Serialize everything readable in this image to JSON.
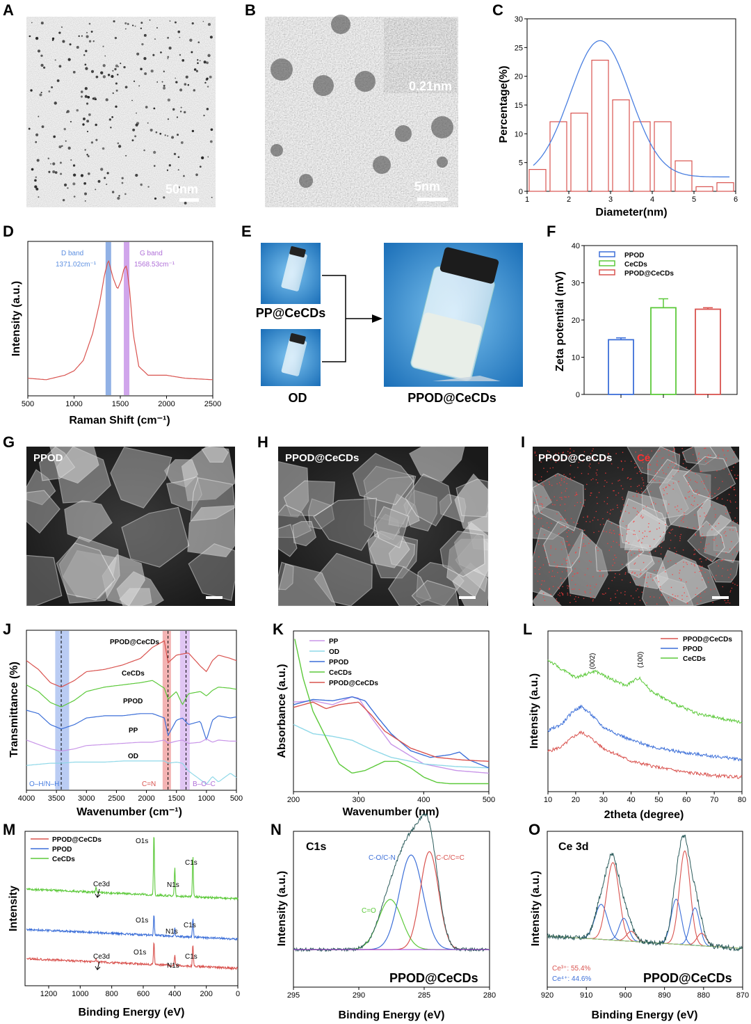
{
  "panel_letters": [
    "A",
    "B",
    "C",
    "D",
    "E",
    "F",
    "G",
    "H",
    "I",
    "J",
    "K",
    "L",
    "M",
    "N",
    "O"
  ],
  "colors": {
    "red": "#d9534f",
    "blue": "#3c6fd8",
    "green": "#5cc93a",
    "violet": "#c895e8",
    "cyan": "#8fd8e8",
    "curve_blue": "#4a7fe0"
  },
  "panelA": {
    "scale": "50nm"
  },
  "panelB": {
    "scale": "5nm",
    "lattice": "0.21nm"
  },
  "panelE": {
    "labels": [
      "PP@CeCDs",
      "OD",
      "PPOD@CeCDs"
    ]
  },
  "panelG": {
    "label": "PPOD"
  },
  "panelH": {
    "label": "PPOD@CeCDs"
  },
  "panelI": {
    "label": "PPOD@CeCDs",
    "element": "Ce"
  },
  "panelD_annot": {
    "d_band": "D band",
    "d_value": "1371.02cm⁻¹",
    "g_band": "G band",
    "g_value": "1568.53cm⁻¹"
  },
  "panelJ_annot": {
    "regions": [
      "O–H/N–H",
      "C=N",
      "B–O–C"
    ]
  },
  "panelL_annot": {
    "peaks": [
      "(002)",
      "(100)"
    ]
  },
  "panelM_annot": {
    "labels": [
      "O1s",
      "C1s",
      "N1s",
      "Ce3d",
      "O1s",
      "N1s",
      "C1s",
      "O1s",
      "N1s",
      "C1s",
      "Ce3d"
    ]
  },
  "panelN_annot": {
    "title": "C1s",
    "sample": "PPOD@CeCDs",
    "peaks": [
      "C-O/C-N",
      "C-C/C=C",
      "C=O"
    ]
  },
  "panelO_annot": {
    "title": "Ce 3d",
    "sample": "PPOD@CeCDs",
    "ce3": "Ce³⁺: 55.4%",
    "ce4": "Ce⁴⁺: 44.6%"
  },
  "chart_data": [
    {
      "panel": "C",
      "type": "bar",
      "title": "",
      "xlabel": "Diameter(nm)",
      "ylabel": "Percentage(%)",
      "xlim": [
        1,
        6
      ],
      "ylim": [
        0,
        30
      ],
      "xticks": [
        "1",
        "2",
        "3",
        "4",
        "5",
        "6"
      ],
      "yticks": [
        "0",
        "5",
        "10",
        "15",
        "20",
        "25",
        "30"
      ],
      "bins": [
        [
          1.05,
          1.45
        ],
        [
          1.55,
          1.95
        ],
        [
          2.05,
          2.45
        ],
        [
          2.55,
          2.95
        ],
        [
          3.05,
          3.45
        ],
        [
          3.55,
          3.95
        ],
        [
          4.05,
          4.45
        ],
        [
          4.55,
          4.95
        ],
        [
          5.05,
          5.45
        ],
        [
          5.55,
          5.95
        ]
      ],
      "values": [
        3.8,
        12.1,
        13.6,
        22.8,
        15.9,
        12.1,
        12.1,
        5.3,
        0.8,
        1.5
      ],
      "fit": {
        "type": "gaussian",
        "baseline": 2.5,
        "amplitude": 23.7,
        "center": 2.75,
        "sigma": 0.72
      }
    },
    {
      "panel": "D",
      "type": "line",
      "xlabel": "Raman Shift (cm⁻¹)",
      "ylabel": "Intensity (a.u.)",
      "xlim": [
        500,
        2500
      ],
      "xticks": [
        "500",
        "1000",
        "1500",
        "2000",
        "2500"
      ],
      "x": [
        500,
        700,
        900,
        1000,
        1100,
        1200,
        1280,
        1330,
        1371,
        1420,
        1470,
        1510,
        1540,
        1568,
        1600,
        1640,
        1700,
        1800,
        2000,
        2200,
        2500
      ],
      "y": [
        0.1,
        0.09,
        0.12,
        0.15,
        0.22,
        0.4,
        0.62,
        0.8,
        0.9,
        0.78,
        0.7,
        0.76,
        0.84,
        0.86,
        0.7,
        0.4,
        0.18,
        0.12,
        0.12,
        0.1,
        0.09
      ]
    },
    {
      "panel": "F",
      "type": "bar",
      "xlabel": "",
      "ylabel": "Zeta potential (mV)",
      "ylim": [
        0,
        40
      ],
      "yticks": [
        "0",
        "10",
        "20",
        "30",
        "40"
      ],
      "categories": [
        "PPOD",
        "CeCDs",
        "PPOD@CeCDs"
      ],
      "values": [
        14.7,
        23.3,
        22.9
      ],
      "errors": [
        0.5,
        2.4,
        0.4
      ]
    },
    {
      "panel": "J",
      "type": "line",
      "xlabel": "Wavenumber (cm⁻¹)",
      "ylabel": "Transmittance (%)",
      "xlim": [
        4000,
        500
      ],
      "xticks": [
        "4000",
        "3500",
        "3000",
        "2500",
        "2000",
        "1500",
        "1000",
        "500"
      ],
      "series": [
        {
          "name": "PPOD@CeCDs",
          "x": [
            4000,
            3800,
            3600,
            3420,
            3200,
            3000,
            2700,
            2400,
            2100,
            1900,
            1700,
            1640,
            1500,
            1400,
            1300,
            1100,
            1000,
            900,
            800,
            600,
            500
          ],
          "y": [
            0.8,
            0.72,
            0.6,
            0.56,
            0.62,
            0.7,
            0.72,
            0.76,
            0.82,
            0.92,
            0.98,
            0.78,
            0.85,
            0.86,
            0.87,
            0.75,
            0.7,
            0.8,
            0.85,
            0.82,
            0.8
          ]
        },
        {
          "name": "CeCDs",
          "x": [
            4000,
            3800,
            3600,
            3420,
            3200,
            3000,
            2700,
            2400,
            2100,
            1900,
            1700,
            1640,
            1500,
            1400,
            1300,
            1100,
            1000,
            900,
            800,
            600,
            500
          ],
          "y": [
            0.58,
            0.52,
            0.42,
            0.38,
            0.44,
            0.52,
            0.56,
            0.58,
            0.6,
            0.62,
            0.55,
            0.45,
            0.52,
            0.4,
            0.5,
            0.52,
            0.48,
            0.53,
            0.56,
            0.55,
            0.54
          ]
        },
        {
          "name": "PPOD",
          "x": [
            4000,
            3800,
            3600,
            3420,
            3200,
            3000,
            2700,
            2400,
            2100,
            1900,
            1700,
            1640,
            1500,
            1400,
            1300,
            1100,
            1000,
            900,
            800,
            600,
            500
          ],
          "y": [
            0.35,
            0.32,
            0.22,
            0.18,
            0.22,
            0.28,
            0.3,
            0.3,
            0.32,
            0.32,
            0.28,
            0.12,
            0.26,
            0.28,
            0.22,
            0.25,
            0.08,
            0.26,
            0.3,
            0.28,
            0.29
          ]
        },
        {
          "name": "PP",
          "x": [
            4000,
            3800,
            3600,
            3420,
            3200,
            3000,
            2700,
            2400,
            2100,
            1900,
            1700,
            1640,
            1500,
            1400,
            1300,
            1100,
            1000,
            900,
            800,
            600,
            500
          ],
          "y": [
            0.08,
            0.04,
            0.0,
            -0.02,
            0.0,
            0.03,
            0.04,
            0.05,
            0.06,
            0.06,
            0.08,
            0.05,
            0.07,
            0.08,
            0.05,
            0.06,
            0.09,
            0.06,
            0.08,
            0.07,
            0.07
          ]
        },
        {
          "name": "OD",
          "x": [
            4000,
            3800,
            3600,
            3420,
            3200,
            3000,
            2700,
            2400,
            2100,
            1900,
            1700,
            1640,
            1500,
            1400,
            1300,
            1100,
            1000,
            900,
            800,
            600,
            500
          ],
          "y": [
            -0.15,
            -0.14,
            -0.13,
            -0.13,
            -0.12,
            -0.12,
            -0.12,
            -0.11,
            -0.11,
            -0.11,
            -0.11,
            -0.13,
            -0.12,
            -0.13,
            -0.2,
            -0.28,
            -0.32,
            -0.25,
            -0.3,
            -0.22,
            -0.26
          ]
        }
      ]
    },
    {
      "panel": "K",
      "type": "line",
      "xlabel": "Wavenumber (nm)",
      "ylabel": "Absorbance (a.u.)",
      "xlim": [
        200,
        500
      ],
      "xticks": [
        "200",
        "300",
        "400",
        "500"
      ],
      "series": [
        {
          "name": "PP",
          "x": [
            200,
            230,
            260,
            290,
            300,
            320,
            350,
            400,
            450,
            500
          ],
          "y": [
            0.62,
            0.63,
            0.6,
            0.66,
            0.65,
            0.5,
            0.3,
            0.15,
            0.1,
            0.08
          ]
        },
        {
          "name": "OD",
          "x": [
            200,
            230,
            260,
            290,
            320,
            350,
            400,
            450,
            500
          ],
          "y": [
            0.45,
            0.38,
            0.36,
            0.33,
            0.26,
            0.2,
            0.15,
            0.13,
            0.12
          ]
        },
        {
          "name": "PPOD",
          "x": [
            200,
            230,
            260,
            290,
            310,
            330,
            350,
            380,
            410,
            440,
            455,
            470,
            500
          ],
          "y": [
            0.6,
            0.64,
            0.63,
            0.66,
            0.63,
            0.5,
            0.38,
            0.25,
            0.2,
            0.22,
            0.24,
            0.18,
            0.12
          ]
        },
        {
          "name": "CeCDs",
          "x": [
            202,
            215,
            230,
            250,
            270,
            290,
            310,
            340,
            360,
            380,
            400,
            420,
            440,
            500
          ],
          "y": [
            1.1,
            0.8,
            0.55,
            0.35,
            0.15,
            0.08,
            0.1,
            0.17,
            0.17,
            0.12,
            0.05,
            0.01,
            0.0,
            0.0
          ]
        },
        {
          "name": "PPOD@CeCDs",
          "x": [
            200,
            230,
            250,
            270,
            300,
            320,
            340,
            380,
            420,
            460,
            500
          ],
          "y": [
            0.58,
            0.62,
            0.57,
            0.6,
            0.62,
            0.52,
            0.4,
            0.27,
            0.2,
            0.18,
            0.17
          ]
        }
      ]
    },
    {
      "panel": "L",
      "type": "line",
      "xlabel": "2theta (degree)",
      "ylabel": "Intensity (a.u.)",
      "xlim": [
        10,
        80
      ],
      "xticks": [
        "10",
        "20",
        "30",
        "40",
        "50",
        "60",
        "70",
        "80"
      ],
      "series": [
        {
          "name": "PPOD@CeCDs",
          "x": [
            10,
            15,
            19,
            22,
            25,
            30,
            40,
            50,
            60,
            70,
            80
          ],
          "y": [
            0.25,
            0.28,
            0.34,
            0.37,
            0.34,
            0.27,
            0.19,
            0.15,
            0.12,
            0.1,
            0.09
          ]
        },
        {
          "name": "PPOD",
          "x": [
            10,
            15,
            19,
            22,
            25,
            30,
            40,
            50,
            60,
            70,
            80
          ],
          "y": [
            0.38,
            0.42,
            0.5,
            0.53,
            0.49,
            0.4,
            0.32,
            0.27,
            0.24,
            0.22,
            0.2
          ]
        },
        {
          "name": "CeCDs",
          "x": [
            10,
            15,
            20,
            27,
            33,
            38,
            43,
            47,
            55,
            65,
            80
          ],
          "y": [
            0.82,
            0.76,
            0.71,
            0.75,
            0.7,
            0.66,
            0.71,
            0.63,
            0.55,
            0.48,
            0.43
          ]
        }
      ]
    },
    {
      "panel": "M",
      "type": "line",
      "xlabel": "Binding Energy (eV)",
      "ylabel": "Intensity",
      "xlim": [
        1350,
        0
      ],
      "xticks": [
        "1200",
        "1000",
        "800",
        "600",
        "400",
        "200",
        "0"
      ],
      "legend": [
        "PPOD@CeCDs",
        "PPOD",
        "CeCDs"
      ]
    },
    {
      "panel": "N",
      "type": "line",
      "xlabel": "Binding Energy (eV)",
      "ylabel": "Intensity (a.u.)",
      "xlim": [
        295,
        280
      ],
      "xticks": [
        "295",
        "290",
        "285",
        "280"
      ],
      "peaks": [
        {
          "name": "C=O",
          "center": 287.6,
          "height": 0.45,
          "width": 0.9
        },
        {
          "name": "C-O/C-N",
          "center": 286.0,
          "height": 0.85,
          "width": 0.9
        },
        {
          "name": "C-C/C=C",
          "center": 284.6,
          "height": 0.88,
          "width": 0.7
        }
      ]
    },
    {
      "panel": "O",
      "type": "line",
      "xlabel": "Binding Energy (eV)",
      "ylabel": "Intensity (a.u.)",
      "xlim": [
        920,
        870
      ],
      "xticks": [
        "920",
        "910",
        "900",
        "890",
        "880",
        "870"
      ],
      "peaks": [
        {
          "center": 906.2,
          "height": 0.28,
          "width": 1.6,
          "color": "blue"
        },
        {
          "center": 903.2,
          "height": 0.62,
          "width": 1.6,
          "color": "red"
        },
        {
          "center": 900.4,
          "height": 0.18,
          "width": 1.2,
          "color": "blue"
        },
        {
          "center": 898.5,
          "height": 0.08,
          "width": 1.2,
          "color": "red"
        },
        {
          "center": 887.0,
          "height": 0.36,
          "width": 1.3,
          "color": "blue"
        },
        {
          "center": 884.8,
          "height": 0.75,
          "width": 1.4,
          "color": "red"
        },
        {
          "center": 882.2,
          "height": 0.3,
          "width": 1.2,
          "color": "blue"
        },
        {
          "center": 880.5,
          "height": 0.1,
          "width": 1.2,
          "color": "red"
        }
      ]
    }
  ]
}
